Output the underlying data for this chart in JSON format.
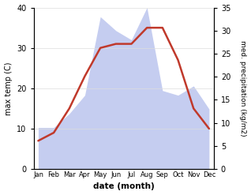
{
  "months": [
    "Jan",
    "Feb",
    "Mar",
    "Apr",
    "May",
    "Jun",
    "Jul",
    "Aug",
    "Sep",
    "Oct",
    "Nov",
    "Dec"
  ],
  "temperature": [
    7,
    9,
    15,
    23,
    30,
    31,
    31,
    35,
    35,
    27,
    15,
    10
  ],
  "precipitation": [
    9,
    9,
    12,
    16,
    33,
    30,
    28,
    35,
    17,
    16,
    18,
    13
  ],
  "temp_color": "#c0392b",
  "precip_fill_color": "#c5cdf0",
  "title": "",
  "xlabel": "date (month)",
  "ylabel_left": "max temp (C)",
  "ylabel_right": "med. precipitation (kg/m2)",
  "ylim_left": [
    0,
    40
  ],
  "ylim_right": [
    0,
    35
  ],
  "yticks_left": [
    0,
    10,
    20,
    30,
    40
  ],
  "yticks_right": [
    0,
    5,
    10,
    15,
    20,
    25,
    30,
    35
  ],
  "bg_color": "#ffffff",
  "fig_width": 3.18,
  "fig_height": 2.47,
  "dpi": 100
}
